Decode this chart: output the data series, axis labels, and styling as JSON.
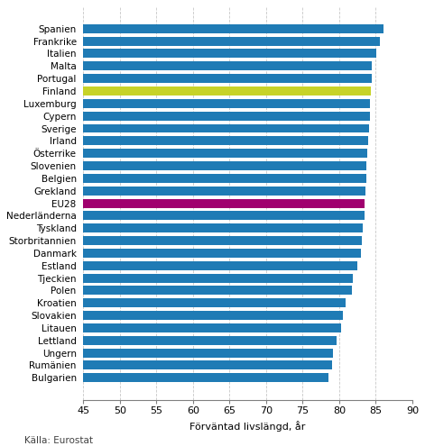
{
  "countries": [
    "Spanien",
    "Frankrike",
    "Italien",
    "Malta",
    "Portugal",
    "Finland",
    "Luxemburg",
    "Cypern",
    "Sverige",
    "Irland",
    "Österrike",
    "Slovenien",
    "Belgien",
    "Grekland",
    "EU28",
    "Nederländerna",
    "Tyskland",
    "Storbritannien",
    "Danmark",
    "Estland",
    "Tjeckien",
    "Polen",
    "Kroatien",
    "Slovakien",
    "Litauen",
    "Lettland",
    "Ungern",
    "Rumänien",
    "Bulgarien"
  ],
  "values": [
    86.0,
    85.6,
    85.1,
    84.5,
    84.4,
    84.3,
    84.2,
    84.2,
    84.1,
    84.0,
    83.8,
    83.7,
    83.7,
    83.6,
    83.5,
    83.4,
    83.2,
    83.1,
    83.0,
    82.5,
    81.8,
    81.7,
    80.9,
    80.5,
    80.3,
    79.6,
    79.2,
    79.0,
    78.5
  ],
  "colors": [
    "#1f7bb5",
    "#1f7bb5",
    "#1f7bb5",
    "#1f7bb5",
    "#1f7bb5",
    "#c7d328",
    "#1f7bb5",
    "#1f7bb5",
    "#1f7bb5",
    "#1f7bb5",
    "#1f7bb5",
    "#1f7bb5",
    "#1f7bb5",
    "#1f7bb5",
    "#a0006e",
    "#1f7bb5",
    "#1f7bb5",
    "#1f7bb5",
    "#1f7bb5",
    "#1f7bb5",
    "#1f7bb5",
    "#1f7bb5",
    "#1f7bb5",
    "#1f7bb5",
    "#1f7bb5",
    "#1f7bb5",
    "#1f7bb5",
    "#1f7bb5",
    "#1f7bb5"
  ],
  "xlim": [
    45,
    90
  ],
  "xstart": 45,
  "xticks": [
    45,
    50,
    55,
    60,
    65,
    70,
    75,
    80,
    85,
    90
  ],
  "xlabel": "Förväntad livslängd, år",
  "source_label": "Källa: Eurostat",
  "background_color": "#ffffff",
  "grid_color": "#c8c8c8",
  "bar_height": 0.72,
  "label_fontsize": 7.5,
  "tick_fontsize": 8.0
}
